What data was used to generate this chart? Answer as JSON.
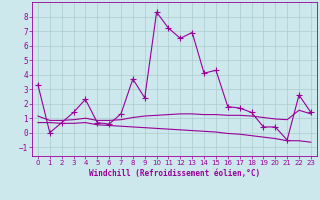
{
  "bg_color": "#cce8ec",
  "grid_color": "#aacccc",
  "line_color": "#990099",
  "xlabel": "Windchill (Refroidissement éolien,°C)",
  "xlim": [
    -0.5,
    23.5
  ],
  "ylim": [
    -1.6,
    9.0
  ],
  "yticks": [
    -1,
    0,
    1,
    2,
    3,
    4,
    5,
    6,
    7,
    8
  ],
  "xticks": [
    0,
    1,
    2,
    3,
    4,
    5,
    6,
    7,
    8,
    9,
    10,
    11,
    12,
    13,
    14,
    15,
    16,
    17,
    18,
    19,
    20,
    21,
    22,
    23
  ],
  "series": [
    {
      "x": [
        0,
        1,
        2,
        3,
        4,
        5,
        6,
        7,
        8,
        9,
        10,
        11,
        12,
        13,
        14,
        15,
        16,
        17,
        18,
        19,
        20,
        21,
        22,
        23
      ],
      "y": [
        3.3,
        0.0,
        0.7,
        1.4,
        2.3,
        0.7,
        0.6,
        1.3,
        3.7,
        2.4,
        8.3,
        7.2,
        6.5,
        6.9,
        4.1,
        4.3,
        1.8,
        1.7,
        1.4,
        0.4,
        0.4,
        -0.5,
        2.6,
        1.4
      ],
      "marker": "+",
      "linewidth": 0.8
    },
    {
      "x": [
        0,
        1,
        2,
        3,
        4,
        5,
        6,
        7,
        8,
        9,
        10,
        11,
        12,
        13,
        14,
        15,
        16,
        17,
        18,
        19,
        20,
        21,
        22,
        23
      ],
      "y": [
        0.7,
        0.7,
        0.65,
        0.65,
        0.7,
        0.55,
        0.5,
        0.45,
        0.4,
        0.35,
        0.3,
        0.25,
        0.2,
        0.15,
        0.1,
        0.05,
        -0.05,
        -0.1,
        -0.2,
        -0.3,
        -0.4,
        -0.55,
        -0.55,
        -0.65
      ],
      "marker": null,
      "linewidth": 0.8
    },
    {
      "x": [
        0,
        1,
        2,
        3,
        4,
        5,
        6,
        7,
        8,
        9,
        10,
        11,
        12,
        13,
        14,
        15,
        16,
        17,
        18,
        19,
        20,
        21,
        22,
        23
      ],
      "y": [
        1.15,
        0.85,
        0.85,
        0.9,
        1.0,
        0.85,
        0.85,
        0.9,
        1.05,
        1.15,
        1.2,
        1.25,
        1.3,
        1.3,
        1.25,
        1.25,
        1.2,
        1.2,
        1.15,
        1.05,
        0.95,
        0.9,
        1.55,
        1.3
      ],
      "marker": null,
      "linewidth": 0.8
    }
  ]
}
